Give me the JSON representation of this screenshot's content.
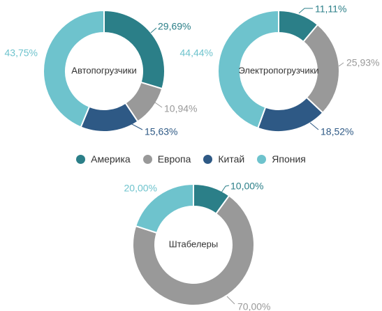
{
  "colors": {
    "Америка": "#2b7f88",
    "Европа": "#999999",
    "Китай": "#2e5985",
    "Япония": "#6ec3cd"
  },
  "legend": [
    {
      "label": "Америка"
    },
    {
      "label": "Европа"
    },
    {
      "label": "Китай"
    },
    {
      "label": "Япония"
    }
  ],
  "chart_data": [
    {
      "type": "donut",
      "title": "Автопогрузчики",
      "categories": [
        "Америка",
        "Европа",
        "Китай",
        "Япония"
      ],
      "values": [
        29.69,
        10.94,
        15.63,
        43.75
      ],
      "labels": [
        "29,69%",
        "10,94%",
        "15,63%",
        "43,75%"
      ]
    },
    {
      "type": "donut",
      "title": "Электропогрузчики",
      "categories": [
        "Америка",
        "Европа",
        "Китай",
        "Япония"
      ],
      "values": [
        11.11,
        25.93,
        18.52,
        44.44
      ],
      "labels": [
        "11,11%",
        "25,93%",
        "18,52%",
        "44,44%"
      ]
    },
    {
      "type": "donut",
      "title": "Штабелеры",
      "categories": [
        "Америка",
        "Европа",
        "Китай",
        "Япония"
      ],
      "values": [
        10.0,
        70.0,
        0,
        20.0
      ],
      "labels": [
        "10,00%",
        "70,00%",
        "",
        "20,00%"
      ]
    }
  ]
}
